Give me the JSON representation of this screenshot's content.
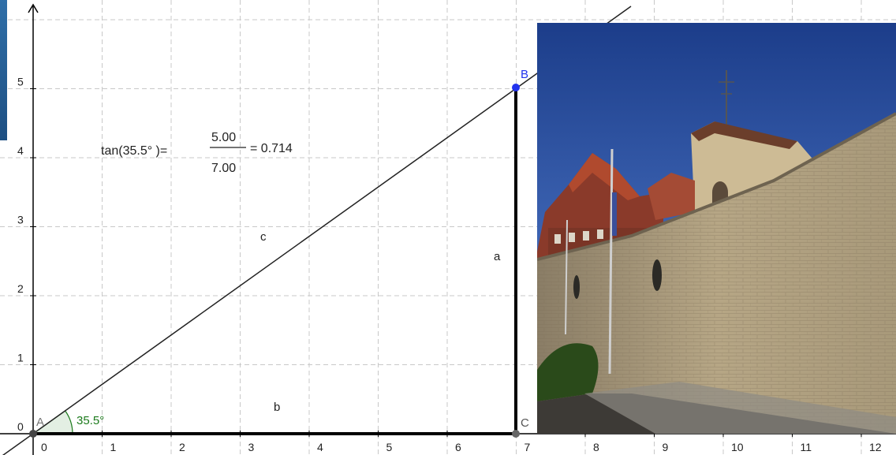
{
  "graph": {
    "x_ticks": [
      "0",
      "1",
      "2",
      "3",
      "4",
      "5",
      "6",
      "7",
      "8",
      "9",
      "10",
      "11",
      "12"
    ],
    "y_ticks": [
      "0",
      "1",
      "2",
      "3",
      "4",
      "5"
    ],
    "points": {
      "A": "A",
      "B": "B",
      "C": "C"
    },
    "sides": {
      "a": "a",
      "b": "b",
      "c": "c"
    },
    "angle_label": "35.5°",
    "formula": {
      "lhs": "tan(35.5°  )=",
      "numerator": "5.00",
      "denominator": "7.00",
      "result": "= 0.714"
    }
  },
  "colors": {
    "point_blue": "#2233ee",
    "angle_green": "#1b7a1b",
    "side_black": "#000000"
  },
  "photo": {
    "subject": "brick wall with buildings behind, blue sky"
  }
}
